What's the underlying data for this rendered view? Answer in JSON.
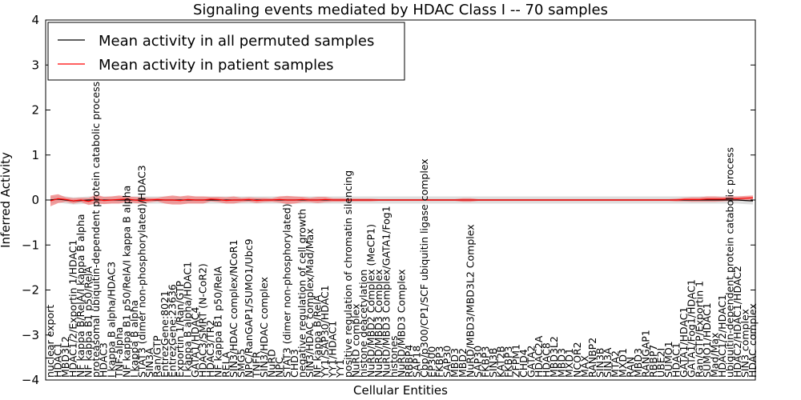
{
  "chart_data": {
    "type": "line",
    "title": "Signaling events mediated by HDAC Class I -- 70 samples",
    "xlabel": "Cellular Entities",
    "ylabel": "Inferred Activity",
    "ylim": [
      -4,
      4
    ],
    "yticks": [
      -4,
      -3,
      -2,
      -1,
      0,
      1,
      2,
      3,
      4
    ],
    "grid": false,
    "legend_position": "top-left",
    "series": [
      {
        "name": "Mean activity in all permuted samples",
        "color": "#000000",
        "style": "near-zero constant"
      },
      {
        "name": "Mean activity in patient samples",
        "color": "#ff0000",
        "style": "near-zero with light red error band"
      }
    ],
    "categories": [
      "nuclear export",
      "HDAC1",
      "MBD3L2",
      "HDAC1/2/Exportin 1/HDAC1",
      "NF kappa B/RelA/I kappa B alpha",
      "NF kappa B1 p50/RelA",
      "proteasomal ubiquitin-dependent protein catabolic process",
      "HDAC3",
      "I kappa B alpha/HDAC3",
      "TNF-alpha",
      "NF kappa B1 p50/RelA/I kappa B alpha",
      "I kappa B alpha",
      "STAT3 (dimer non-phosphorylated)/HDAC3",
      "SIN3A",
      "Ran/GTP",
      "EntrezGene:8021",
      "EntrezGene:23636",
      "Exportin 1/Ran/GTP",
      "I kappa B alpha/HDAC1",
      "GATA1/HDAC4",
      "HDAC3/SMRT (N-CoR2)",
      "HDAC3/TR2",
      "NF kappa B1 p50/RelA",
      "RELA",
      "SIN3/HDAC complex/NCoR1",
      "SMG5",
      "NPC/RanGAP1/SUMO1/Ubc9",
      "TNFR",
      "SIN3/HDAC complex",
      "NuRD",
      "NPC",
      "STAT3 (dimer non-phosphorylated)",
      "CHD3",
      "negative regulation of cell growth",
      "SIN3/HDAC complex/Mad/Max",
      "NF kappa B/RelA",
      "YY1/SAP30/HDAC1",
      "YY1/HDAC1",
      "YY1",
      "positive regulation of chromatin silencing",
      "NuRD complex",
      "histone deacetylation",
      "NuRD/MBD2 Complex (MeCP1)",
      "NuRD/MBD3 Complex",
      "NuRD/MBD3 Complex/GATA1/Fog1",
      "histones",
      "NuRD/MBD3 Complex",
      "RBBP4",
      "SAP18",
      "Cbp/p300/CP1/SCF ubiquitin ligase complex",
      "EP300",
      "FKBP3",
      "SAP30",
      "MBD3",
      "MBD2",
      "NuRD/MBD3/MBD3L2 Complex",
      "SAP30",
      "FKBP3",
      "SIN3B",
      "KAT2B",
      "FKBP3",
      "ZFPM1",
      "CHD4",
      "GATA2",
      "HDAC2A",
      "HDAC8",
      "MBD3L2",
      "MBD3",
      "MXD1",
      "NCOR2",
      "MAX",
      "RANBP2",
      "SIN3B",
      "SIN3A",
      "MTA2",
      "MXD1",
      "RAN",
      "MBD3",
      "RANGAP1",
      "RBBP7",
      "UBE2I",
      "SUMO1",
      "HDAC1",
      "GATA1/HDAC1",
      "GATA1/Fog1/HDAC1",
      "Ran/GTP/Exportin 1",
      "SUMO1/HDAC1",
      "Mad/Max",
      "HDAC1/2/HDAC1",
      "ubiquitin-dependent protein catabolic process",
      "HDAC2/HDAC1/HDAC2",
      "SIN3 complex",
      "HDAC complex"
    ],
    "values_patient": [
      -0.02,
      0.03,
      0.01,
      -0.02,
      0.0,
      -0.03,
      0.02,
      -0.01,
      0.0,
      0.01,
      0.02,
      0.0,
      -0.01,
      0.0,
      0.01,
      0.0,
      0.0,
      -0.01,
      0.01,
      0.0,
      0.0,
      0.02,
      0.01,
      -0.01,
      0.0,
      0.0,
      0.01,
      -0.01,
      0.0,
      0.0,
      0.01,
      0.0,
      0.0,
      0.01,
      0.0,
      0.0,
      0.01,
      0.0,
      0.0,
      0.0,
      0.0,
      0.0,
      0.0,
      0.0,
      0.0,
      0.0,
      0.0,
      0.0,
      0.0,
      0.0,
      0.0,
      0.0,
      0.0,
      0.0,
      0.0,
      0.0,
      0.0,
      0.0,
      0.0,
      0.0,
      0.0,
      0.0,
      0.0,
      0.0,
      0.0,
      0.0,
      0.0,
      0.0,
      0.0,
      0.0,
      0.0,
      0.0,
      0.0,
      0.0,
      0.0,
      0.0,
      0.0,
      0.0,
      0.0,
      0.0,
      0.0,
      0.0,
      0.0,
      0.01,
      0.01,
      0.01,
      0.02,
      0.02,
      0.02,
      0.03,
      0.03,
      0.04,
      0.05
    ],
    "band_patient": [
      0.12,
      0.1,
      0.05,
      0.06,
      0.05,
      0.08,
      0.1,
      0.08,
      0.08,
      0.09,
      0.06,
      0.07,
      0.07,
      0.05,
      0.04,
      0.08,
      0.1,
      0.09,
      0.09,
      0.08,
      0.08,
      0.05,
      0.06,
      0.07,
      0.08,
      0.05,
      0.05,
      0.06,
      0.05,
      0.04,
      0.07,
      0.09,
      0.08,
      0.06,
      0.05,
      0.07,
      0.06,
      0.04,
      0.04,
      0.03,
      0.03,
      0.03,
      0.03,
      0.02,
      0.02,
      0.02,
      0.02,
      0.02,
      0.02,
      0.02,
      0.02,
      0.02,
      0.02,
      0.02,
      0.04,
      0.04,
      0.02,
      0.02,
      0.02,
      0.02,
      0.02,
      0.02,
      0.02,
      0.02,
      0.02,
      0.02,
      0.02,
      0.02,
      0.02,
      0.02,
      0.02,
      0.02,
      0.02,
      0.02,
      0.02,
      0.02,
      0.02,
      0.02,
      0.02,
      0.02,
      0.02,
      0.02,
      0.03,
      0.04,
      0.05,
      0.05,
      0.06,
      0.06,
      0.05,
      0.05,
      0.05,
      0.05,
      0.05
    ],
    "values_permuted": [
      0.0,
      0.02,
      0.0,
      -0.02,
      -0.01,
      0.0,
      0.0,
      0.0,
      0.0,
      0.0,
      0.0,
      0.0,
      0.0,
      0.0,
      0.0,
      0.0,
      0.0,
      0.0,
      0.0,
      0.0,
      0.0,
      0.0,
      0.0,
      0.0,
      0.0,
      0.0,
      0.0,
      0.0,
      0.0,
      0.0,
      0.0,
      0.0,
      0.0,
      0.0,
      0.0,
      0.0,
      0.0,
      0.0,
      0.0,
      0.0,
      0.0,
      0.0,
      0.0,
      0.0,
      0.0,
      0.0,
      0.0,
      0.0,
      0.0,
      0.0,
      0.0,
      0.0,
      0.0,
      0.0,
      0.0,
      0.0,
      0.0,
      0.0,
      0.0,
      0.0,
      0.0,
      0.0,
      0.0,
      0.0,
      0.0,
      0.0,
      0.0,
      0.0,
      0.0,
      0.0,
      0.0,
      0.0,
      0.0,
      0.0,
      0.0,
      0.0,
      0.0,
      0.0,
      0.0,
      0.0,
      0.0,
      0.0,
      0.0,
      0.0,
      0.0,
      0.0,
      0.0,
      0.0,
      0.0,
      0.0,
      0.0,
      -0.01,
      -0.02
    ],
    "band_permuted": 0.08
  },
  "colors": {
    "patient_line": "#ff0000",
    "patient_band": "#f08080",
    "permuted_line": "#000000",
    "permuted_band": "#c8c8c8"
  }
}
